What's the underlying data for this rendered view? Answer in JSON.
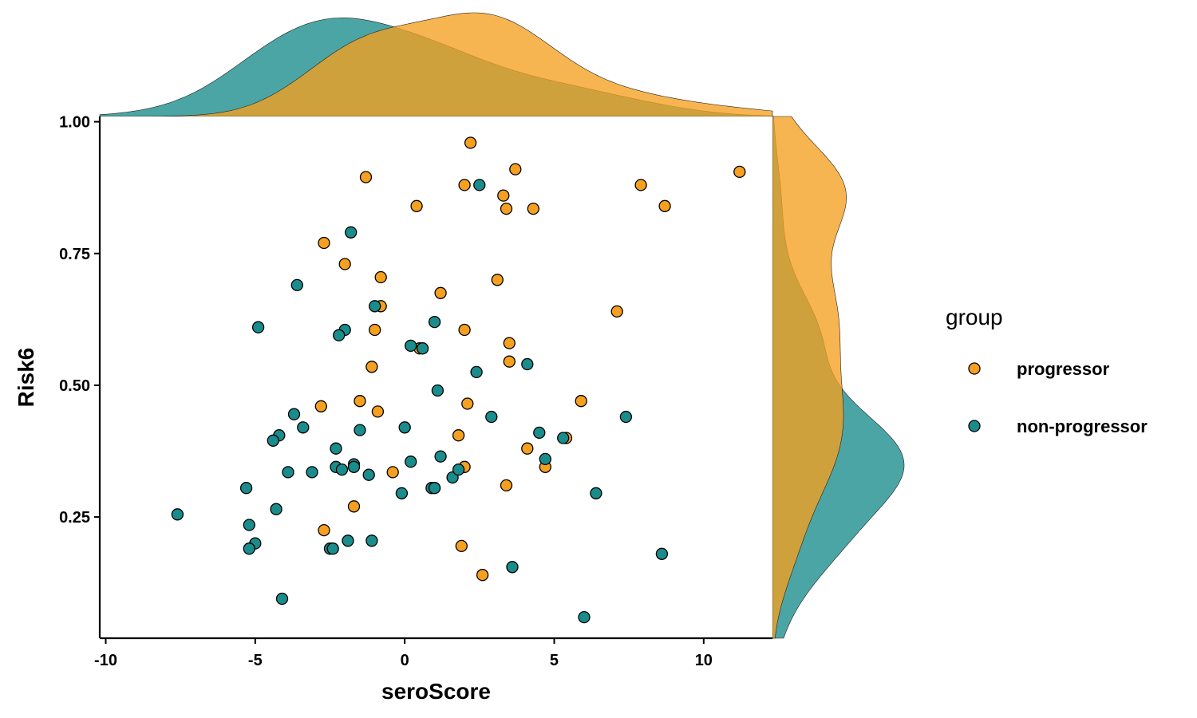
{
  "chart_data": {
    "type": "scatter",
    "title": "",
    "xlabel": "seroScore",
    "ylabel": "Risk6",
    "xlim": [
      -10.2,
      12.3
    ],
    "ylim": [
      0.02,
      1.01
    ],
    "x_ticks": [
      -10,
      -5,
      0,
      5,
      10
    ],
    "x_tick_labels": [
      "-10",
      "-5",
      "0",
      "5",
      "10"
    ],
    "y_ticks": [
      0.25,
      0.5,
      0.75,
      1.0
    ],
    "y_tick_labels": [
      "0.25",
      "0.50",
      "0.75",
      "1.00"
    ],
    "grid": false,
    "marginal_plots": "density",
    "legend": {
      "title": "group",
      "position": "right",
      "entries": [
        "progressor",
        "non-progressor"
      ]
    },
    "series": [
      {
        "name": "progressor",
        "color": "#F5A020",
        "points": [
          [
            2.2,
            0.96
          ],
          [
            3.7,
            0.91
          ],
          [
            11.2,
            0.905
          ],
          [
            -1.3,
            0.895
          ],
          [
            2.0,
            0.88
          ],
          [
            7.9,
            0.88
          ],
          [
            3.3,
            0.86
          ],
          [
            0.4,
            0.84
          ],
          [
            3.4,
            0.835
          ],
          [
            4.3,
            0.835
          ],
          [
            8.7,
            0.84
          ],
          [
            -2.7,
            0.77
          ],
          [
            -2.0,
            0.73
          ],
          [
            -0.8,
            0.705
          ],
          [
            3.1,
            0.7
          ],
          [
            1.2,
            0.675
          ],
          [
            -0.8,
            0.65
          ],
          [
            7.1,
            0.64
          ],
          [
            2.0,
            0.605
          ],
          [
            -1.0,
            0.605
          ],
          [
            3.5,
            0.58
          ],
          [
            -1.1,
            0.535
          ],
          [
            3.5,
            0.545
          ],
          [
            0.5,
            0.57
          ],
          [
            -1.5,
            0.47
          ],
          [
            5.9,
            0.47
          ],
          [
            2.1,
            0.465
          ],
          [
            -2.8,
            0.46
          ],
          [
            -0.9,
            0.45
          ],
          [
            1.8,
            0.405
          ],
          [
            5.4,
            0.4
          ],
          [
            4.1,
            0.38
          ],
          [
            4.7,
            0.345
          ],
          [
            2.0,
            0.345
          ],
          [
            -0.4,
            0.335
          ],
          [
            3.4,
            0.31
          ],
          [
            -1.7,
            0.27
          ],
          [
            -2.7,
            0.225
          ],
          [
            1.9,
            0.195
          ],
          [
            2.6,
            0.14
          ]
        ]
      },
      {
        "name": "non-progressor",
        "color": "#1A8C8C",
        "points": [
          [
            2.5,
            0.88
          ],
          [
            -1.8,
            0.79
          ],
          [
            -3.6,
            0.69
          ],
          [
            -1.0,
            0.65
          ],
          [
            -4.9,
            0.61
          ],
          [
            -2.0,
            0.605
          ],
          [
            -2.2,
            0.595
          ],
          [
            1.0,
            0.62
          ],
          [
            0.2,
            0.575
          ],
          [
            0.6,
            0.57
          ],
          [
            4.1,
            0.54
          ],
          [
            2.4,
            0.525
          ],
          [
            1.1,
            0.49
          ],
          [
            7.4,
            0.44
          ],
          [
            2.9,
            0.44
          ],
          [
            -3.7,
            0.445
          ],
          [
            -3.4,
            0.42
          ],
          [
            -1.5,
            0.415
          ],
          [
            0.0,
            0.42
          ],
          [
            4.5,
            0.41
          ],
          [
            5.3,
            0.4
          ],
          [
            -4.2,
            0.405
          ],
          [
            -4.4,
            0.395
          ],
          [
            -2.3,
            0.38
          ],
          [
            1.2,
            0.365
          ],
          [
            4.7,
            0.36
          ],
          [
            0.2,
            0.355
          ],
          [
            -1.7,
            0.35
          ],
          [
            -1.7,
            0.345
          ],
          [
            -2.3,
            0.345
          ],
          [
            -2.1,
            0.34
          ],
          [
            -3.9,
            0.335
          ],
          [
            -3.1,
            0.335
          ],
          [
            -1.2,
            0.33
          ],
          [
            1.6,
            0.325
          ],
          [
            1.8,
            0.34
          ],
          [
            0.9,
            0.305
          ],
          [
            1.0,
            0.305
          ],
          [
            -5.3,
            0.305
          ],
          [
            6.4,
            0.295
          ],
          [
            -0.1,
            0.295
          ],
          [
            -4.3,
            0.265
          ],
          [
            -7.6,
            0.255
          ],
          [
            -5.2,
            0.235
          ],
          [
            -5.0,
            0.2
          ],
          [
            -5.2,
            0.19
          ],
          [
            -1.9,
            0.205
          ],
          [
            -1.1,
            0.205
          ],
          [
            -2.5,
            0.19
          ],
          [
            -2.4,
            0.19
          ],
          [
            8.6,
            0.18
          ],
          [
            3.6,
            0.155
          ],
          [
            -4.1,
            0.095
          ],
          [
            6.0,
            0.06
          ]
        ]
      }
    ]
  }
}
